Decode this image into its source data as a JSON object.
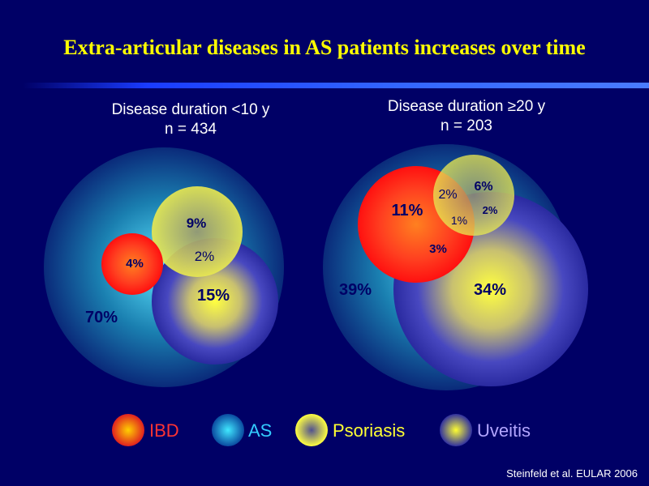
{
  "title": "Extra-articular diseases in AS patients increases over time",
  "panels": [
    {
      "heading_line1": "Disease duration <10 y",
      "heading_line2": "n = 434",
      "labels": {
        "as_only": "70%",
        "ibd_only": "4%",
        "psoriasis_only": "9%",
        "psoriasis_uveitis": "2%",
        "uveitis_only": "15%"
      }
    },
    {
      "heading_line1": "Disease duration ≥20 y",
      "heading_line2": "n = 203",
      "labels": {
        "as_only": "39%",
        "ibd_only": "11%",
        "ibd_psoriasis": "2%",
        "psoriasis_only": "6%",
        "triple": "1%",
        "psoriasis_uveitis": "2%",
        "ibd_uveitis": "3%",
        "uveitis_only": "34%"
      }
    }
  ],
  "legend": [
    {
      "label": "IBD",
      "color": "#ff3333"
    },
    {
      "label": "AS",
      "color": "#33ccff"
    },
    {
      "label": "Psoriasis",
      "color": "#ffff33"
    },
    {
      "label": "Uveitis",
      "color": "#b3a6ff"
    }
  ],
  "credit": "Steinfeld et al. EULAR 2006"
}
